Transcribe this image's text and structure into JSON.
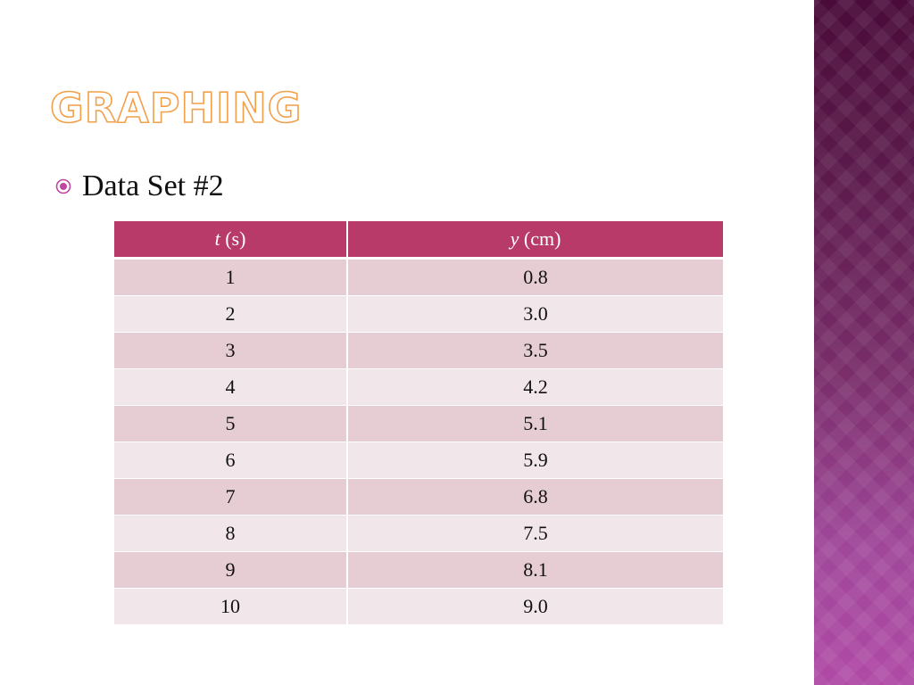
{
  "slide": {
    "title": "Graphing",
    "bullet": "Data Set #2"
  },
  "table": {
    "headers": [
      {
        "var": "t",
        "unit": " (s)"
      },
      {
        "var": "y",
        "unit": " (cm)"
      }
    ],
    "rows": [
      [
        "1",
        "0.8"
      ],
      [
        "2",
        "3.0"
      ],
      [
        "3",
        "3.5"
      ],
      [
        "4",
        "4.2"
      ],
      [
        "5",
        "5.1"
      ],
      [
        "6",
        "5.9"
      ],
      [
        "7",
        "6.8"
      ],
      [
        "8",
        "7.5"
      ],
      [
        "9",
        "8.1"
      ],
      [
        "10",
        "9.0"
      ]
    ]
  },
  "theme": {
    "title_outline": "#f2a04a",
    "header_bg": "#b83a68",
    "row_odd": "#e6cdd3",
    "row_even": "#f1e6e9",
    "bullet_color": "#c0479f",
    "bullet_icon": "radio-bullet-icon"
  }
}
